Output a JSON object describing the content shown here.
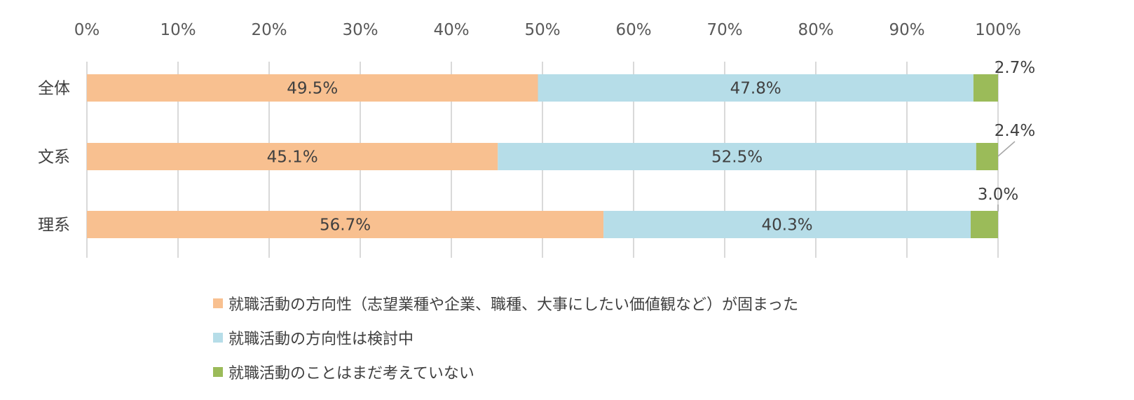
{
  "chart_data": {
    "type": "bar",
    "orientation": "horizontal",
    "stacked": true,
    "percent": true,
    "categories": [
      "全体",
      "文系",
      "理系"
    ],
    "x_ticks": [
      "0%",
      "10%",
      "20%",
      "30%",
      "40%",
      "50%",
      "60%",
      "70%",
      "80%",
      "90%",
      "100%"
    ],
    "xlim": [
      0,
      100
    ],
    "grid": true,
    "legend_position": "bottom",
    "series": [
      {
        "name": "就職活動の方向性（志望業種や企業、職種、大事にしたい価値観など）が固まった",
        "color": "#F8C090",
        "values": [
          49.5,
          45.1,
          56.7
        ],
        "labels": [
          "49.5%",
          "45.1%",
          "56.7%"
        ]
      },
      {
        "name": "就職活動の方向性は検討中",
        "color": "#B6DDE8",
        "values": [
          47.8,
          52.5,
          40.3
        ],
        "labels": [
          "47.8%",
          "52.5%",
          "40.3%"
        ]
      },
      {
        "name": "就職活動のことはまだ考えていない",
        "color": "#9BBB59",
        "values": [
          2.7,
          2.4,
          3.0
        ],
        "labels": [
          "2.7%",
          "2.4%",
          "3.0%"
        ]
      }
    ]
  },
  "colors": {
    "grid": "#d9d9d9",
    "text": "#404040"
  }
}
